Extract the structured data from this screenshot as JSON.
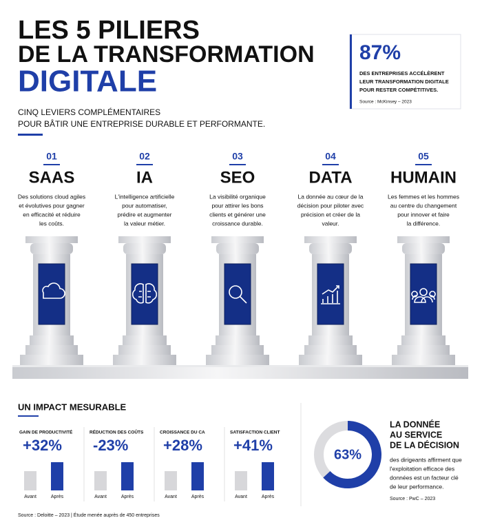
{
  "header": {
    "title_lines": [
      "LES 5 PILIERS",
      "DE LA TRANSFORMATION",
      "DIGITALE"
    ],
    "subtitle_lines": [
      "CINQ LEVIERS COMPLÉMENTAIRES",
      "POUR BÂTIR UNE ENTREPRISE DURABLE ET PERFORMANTE."
    ]
  },
  "stat": {
    "value": "87%",
    "text_lines": [
      "DES ENTREPRISES ACCÉLÈRENT",
      "LEUR TRANSFORMATION DIGITALE",
      "POUR RESTER COMPÉTITIVES."
    ],
    "source": "Source : McKinsey – 2023"
  },
  "pillars": [
    {
      "number": "01",
      "name": "SAAS",
      "desc_lines": [
        "Des solutions cloud agiles",
        "et évolutives pour gagner",
        "en efficacité et réduire",
        "les coûts."
      ]
    },
    {
      "number": "02",
      "name": "IA",
      "desc_lines": [
        "L'intelligence artificielle",
        "pour automatiser,",
        "prédire et augmenter",
        "la valeur métier."
      ]
    },
    {
      "number": "03",
      "name": "SEO",
      "desc_lines": [
        "La visibilité organique",
        "pour attirer les bons",
        "clients et générer une",
        "croissance durable."
      ]
    },
    {
      "number": "04",
      "name": "DATA",
      "desc_lines": [
        "La donnée au cœur de la",
        "décision pour piloter avec",
        "précision et créer de la",
        "valeur."
      ]
    },
    {
      "number": "05",
      "name": "HUMAIN",
      "desc_lines": [
        "Les femmes et les hommes",
        "au centre du changement",
        "pour innover et faire",
        "la différence."
      ]
    }
  ],
  "impact": {
    "title": "UN IMPACT MESURABLE",
    "metrics": [
      {
        "label": "GAIN DE PRODUCTIVITÉ",
        "value": "+32%",
        "before": "Avant",
        "after": "Après"
      },
      {
        "label": "RÉDUCTION DES COÛTS",
        "value": "-23%",
        "before": "Avant",
        "after": "Après"
      },
      {
        "label": "CROISSANCE DU CA",
        "value": "+28%",
        "before": "Avant",
        "after": "Après"
      },
      {
        "label": "SATISFACTION CLIENT",
        "value": "+41%",
        "before": "Avant",
        "after": "Après"
      }
    ],
    "source": "Source : Deloitte – 2023 | Étude menée auprès de 450 entreprises"
  },
  "decision": {
    "donut": {
      "value": 63,
      "label": "63%"
    },
    "title_lines": [
      "LA DONNÉE",
      "AU SERVICE",
      "DE LA DÉCISION"
    ],
    "text_lines": [
      "des dirigeants affirment que",
      "l'exploitation efficace des",
      "données est un facteur clé",
      "de leur performance."
    ],
    "source": "Source : PwC – 2023"
  }
}
